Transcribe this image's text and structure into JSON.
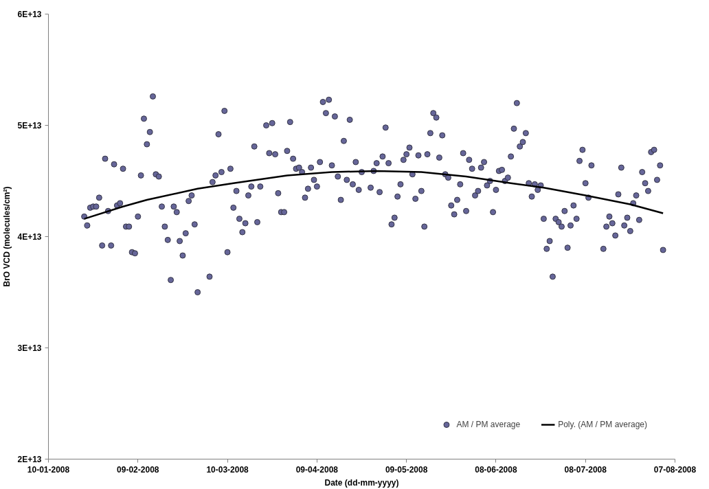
{
  "chart_data": {
    "type": "scatter",
    "xlabel": "Date (dd-mm-yyyy)",
    "ylabel": "BrO VCD (molecules/cm²)",
    "xlim": [
      "2008-01-10",
      "2008-08-07"
    ],
    "xticks": [
      {
        "value": "2008-01-10",
        "label": "10-01-2008"
      },
      {
        "value": "2008-02-09",
        "label": "09-02-2008"
      },
      {
        "value": "2008-03-10",
        "label": "10-03-2008"
      },
      {
        "value": "2008-04-09",
        "label": "09-04-2008"
      },
      {
        "value": "2008-05-09",
        "label": "09-05-2008"
      },
      {
        "value": "2008-06-08",
        "label": "08-06-2008"
      },
      {
        "value": "2008-07-08",
        "label": "08-07-2008"
      },
      {
        "value": "2008-08-07",
        "label": "07-08-2008"
      }
    ],
    "ylim": [
      20000000000000.0,
      60000000000000.0
    ],
    "yticks": [
      {
        "value": 20000000000000.0,
        "label": "2E+13"
      },
      {
        "value": 30000000000000.0,
        "label": "3E+13"
      },
      {
        "value": 40000000000000.0,
        "label": "4E+13"
      },
      {
        "value": 50000000000000.0,
        "label": "5E+13"
      },
      {
        "value": 60000000000000.0,
        "label": "6E+13"
      }
    ],
    "grid": false,
    "legend": "bottom right",
    "series": [
      {
        "name": "AM / PM average",
        "marker": "circle",
        "color": "#666699",
        "x": [
          "2008-01-22",
          "2008-01-23",
          "2008-01-24",
          "2008-01-25",
          "2008-01-26",
          "2008-01-27",
          "2008-01-28",
          "2008-01-29",
          "2008-01-30",
          "2008-01-31",
          "2008-02-01",
          "2008-02-02",
          "2008-02-03",
          "2008-02-04",
          "2008-02-05",
          "2008-02-06",
          "2008-02-07",
          "2008-02-08",
          "2008-02-09",
          "2008-02-10",
          "2008-02-11",
          "2008-02-12",
          "2008-02-13",
          "2008-02-14",
          "2008-02-15",
          "2008-02-16",
          "2008-02-17",
          "2008-02-18",
          "2008-02-19",
          "2008-02-20",
          "2008-02-21",
          "2008-02-22",
          "2008-02-23",
          "2008-02-24",
          "2008-02-25",
          "2008-02-26",
          "2008-02-27",
          "2008-02-28",
          "2008-02-29",
          "2008-03-04",
          "2008-03-05",
          "2008-03-06",
          "2008-03-07",
          "2008-03-08",
          "2008-03-09",
          "2008-03-10",
          "2008-03-11",
          "2008-03-12",
          "2008-03-13",
          "2008-03-14",
          "2008-03-15",
          "2008-03-16",
          "2008-03-17",
          "2008-03-18",
          "2008-03-19",
          "2008-03-20",
          "2008-03-21",
          "2008-03-23",
          "2008-03-24",
          "2008-03-25",
          "2008-03-26",
          "2008-03-27",
          "2008-03-28",
          "2008-03-29",
          "2008-03-30",
          "2008-03-31",
          "2008-04-01",
          "2008-04-02",
          "2008-04-03",
          "2008-04-04",
          "2008-04-05",
          "2008-04-06",
          "2008-04-07",
          "2008-04-08",
          "2008-04-09",
          "2008-04-10",
          "2008-04-11",
          "2008-04-12",
          "2008-04-13",
          "2008-04-14",
          "2008-04-15",
          "2008-04-16",
          "2008-04-17",
          "2008-04-18",
          "2008-04-19",
          "2008-04-20",
          "2008-04-21",
          "2008-04-22",
          "2008-04-23",
          "2008-04-24",
          "2008-04-27",
          "2008-04-28",
          "2008-04-29",
          "2008-04-30",
          "2008-05-01",
          "2008-05-02",
          "2008-05-03",
          "2008-05-04",
          "2008-05-05",
          "2008-05-06",
          "2008-05-07",
          "2008-05-08",
          "2008-05-09",
          "2008-05-10",
          "2008-05-11",
          "2008-05-12",
          "2008-05-13",
          "2008-05-14",
          "2008-05-15",
          "2008-05-16",
          "2008-05-17",
          "2008-05-18",
          "2008-05-19",
          "2008-05-20",
          "2008-05-21",
          "2008-05-22",
          "2008-05-23",
          "2008-05-24",
          "2008-05-25",
          "2008-05-26",
          "2008-05-27",
          "2008-05-28",
          "2008-05-29",
          "2008-05-30",
          "2008-05-31",
          "2008-06-01",
          "2008-06-02",
          "2008-06-03",
          "2008-06-04",
          "2008-06-05",
          "2008-06-06",
          "2008-06-07",
          "2008-06-08",
          "2008-06-09",
          "2008-06-10",
          "2008-06-11",
          "2008-06-12",
          "2008-06-13",
          "2008-06-14",
          "2008-06-15",
          "2008-06-16",
          "2008-06-17",
          "2008-06-18",
          "2008-06-19",
          "2008-06-20",
          "2008-06-21",
          "2008-06-22",
          "2008-06-23",
          "2008-06-24",
          "2008-06-25",
          "2008-06-26",
          "2008-06-27",
          "2008-06-28",
          "2008-06-29",
          "2008-06-30",
          "2008-07-01",
          "2008-07-02",
          "2008-07-03",
          "2008-07-04",
          "2008-07-05",
          "2008-07-06",
          "2008-07-07",
          "2008-07-08",
          "2008-07-09",
          "2008-07-10",
          "2008-07-14",
          "2008-07-15",
          "2008-07-16",
          "2008-07-17",
          "2008-07-18",
          "2008-07-19",
          "2008-07-20",
          "2008-07-21",
          "2008-07-22",
          "2008-07-23",
          "2008-07-24",
          "2008-07-25",
          "2008-07-26",
          "2008-07-27",
          "2008-07-28",
          "2008-07-29",
          "2008-07-30",
          "2008-07-31",
          "2008-08-01",
          "2008-08-02",
          "2008-08-03"
        ],
        "values": [
          41800000000000.0,
          41000000000000.0,
          42600000000000.0,
          42700000000000.0,
          42700000000000.0,
          43500000000000.0,
          39200000000000.0,
          47000000000000.0,
          42300000000000.0,
          39200000000000.0,
          46500000000000.0,
          42800000000000.0,
          43000000000000.0,
          46100000000000.0,
          40900000000000.0,
          40900000000000.0,
          38600000000000.0,
          38500000000000.0,
          41800000000000.0,
          45500000000000.0,
          50600000000000.0,
          48300000000000.0,
          49400000000000.0,
          52600000000000.0,
          45600000000000.0,
          45400000000000.0,
          42700000000000.0,
          40900000000000.0,
          39700000000000.0,
          36100000000000.0,
          42700000000000.0,
          42200000000000.0,
          39600000000000.0,
          38300000000000.0,
          40300000000000.0,
          43200000000000.0,
          43700000000000.0,
          41100000000000.0,
          35000000000000.0,
          36400000000000.0,
          44900000000000.0,
          45500000000000.0,
          49200000000000.0,
          45800000000000.0,
          51300000000000.0,
          38600000000000.0,
          46100000000000.0,
          42600000000000.0,
          44100000000000.0,
          41600000000000.0,
          40400000000000.0,
          41200000000000.0,
          43700000000000.0,
          44500000000000.0,
          48100000000000.0,
          41300000000000.0,
          44500000000000.0,
          50000000000000.0,
          47500000000000.0,
          50200000000000.0,
          47400000000000.0,
          43900000000000.0,
          42200000000000.0,
          42200000000000.0,
          47700000000000.0,
          50300000000000.0,
          47000000000000.0,
          46100000000000.0,
          46200000000000.0,
          45800000000000.0,
          43500000000000.0,
          44300000000000.0,
          46200000000000.0,
          45100000000000.0,
          44500000000000.0,
          46700000000000.0,
          52100000000000.0,
          51100000000000.0,
          52300000000000.0,
          46400000000000.0,
          50800000000000.0,
          45400000000000.0,
          43300000000000.0,
          48600000000000.0,
          45100000000000.0,
          50500000000000.0,
          44700000000000.0,
          46700000000000.0,
          44200000000000.0,
          45800000000000.0,
          44400000000000.0,
          45900000000000.0,
          46600000000000.0,
          44000000000000.0,
          47200000000000.0,
          49800000000000.0,
          46600000000000.0,
          41100000000000.0,
          41700000000000.0,
          43600000000000.0,
          44700000000000.0,
          46900000000000.0,
          47400000000000.0,
          48000000000000.0,
          45600000000000.0,
          43400000000000.0,
          47300000000000.0,
          44100000000000.0,
          40900000000000.0,
          47400000000000.0,
          49300000000000.0,
          51100000000000.0,
          50700000000000.0,
          47100000000000.0,
          49100000000000.0,
          45600000000000.0,
          45300000000000.0,
          42800000000000.0,
          42000000000000.0,
          43300000000000.0,
          44700000000000.0,
          47500000000000.0,
          42300000000000.0,
          46900000000000.0,
          46100000000000.0,
          43700000000000.0,
          44100000000000.0,
          46200000000000.0,
          46700000000000.0,
          44600000000000.0,
          45000000000000.0,
          42200000000000.0,
          44200000000000.0,
          45900000000000.0,
          46000000000000.0,
          45000000000000.0,
          45300000000000.0,
          47200000000000.0,
          49700000000000.0,
          52000000000000.0,
          48100000000000.0,
          48500000000000.0,
          49300000000000.0,
          44800000000000.0,
          43600000000000.0,
          44700000000000.0,
          44200000000000.0,
          44600000000000.0,
          41600000000000.0,
          38900000000000.0,
          39600000000000.0,
          36400000000000.0,
          41600000000000.0,
          41300000000000.0,
          40900000000000.0,
          42300000000000.0,
          39000000000000.0,
          41000000000000.0,
          42800000000000.0,
          41600000000000.0,
          46800000000000.0,
          47800000000000.0,
          44800000000000.0,
          43500000000000.0,
          46400000000000.0,
          38900000000000.0,
          40900000000000.0,
          41800000000000.0,
          41200000000000.0,
          40100000000000.0,
          43800000000000.0,
          46200000000000.0,
          41000000000000.0,
          41700000000000.0,
          40500000000000.0,
          43000000000000.0,
          43700000000000.0,
          41500000000000.0,
          45800000000000.0,
          44800000000000.0,
          44100000000000.0,
          47600000000000.0,
          47800000000000.0,
          45100000000000.0,
          46400000000000.0,
          38800000000000.0
        ]
      },
      {
        "name": "Poly. (AM / PM average)",
        "type": "line",
        "marker": "none",
        "color": "#000000",
        "x": [
          "2008-01-22",
          "2008-02-04",
          "2008-02-12",
          "2008-02-29",
          "2008-03-12",
          "2008-03-30",
          "2008-04-14",
          "2008-04-29",
          "2008-05-14",
          "2008-05-29",
          "2008-06-13",
          "2008-06-24",
          "2008-07-08",
          "2008-07-23",
          "2008-08-03"
        ],
        "values": [
          41600000000000.0,
          42700000000000.0,
          43300000000000.0,
          44300000000000.0,
          44800000000000.0,
          45500000000000.0,
          45800000000000.0,
          45900000000000.0,
          45800000000000.0,
          45400000000000.0,
          44800000000000.0,
          44400000000000.0,
          43700000000000.0,
          42900000000000.0,
          42100000000000.0
        ]
      }
    ]
  }
}
